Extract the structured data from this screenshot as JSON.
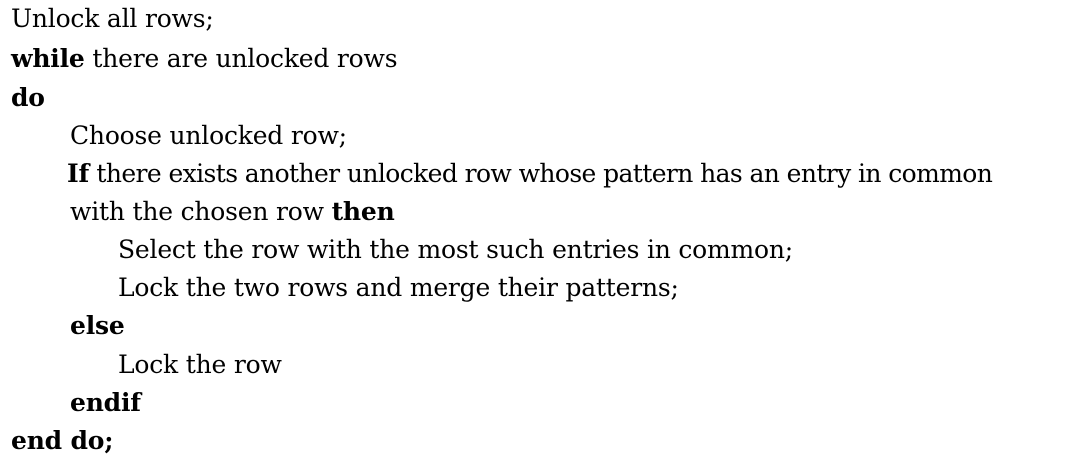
{
  "algorithm": {
    "lines": [
      {
        "text": "Unlock all rows;"
      },
      {
        "keyword": "while",
        "text": " there are unlocked rows"
      },
      {
        "keyword": "do"
      },
      {
        "text": "Choose unlocked row;"
      },
      {
        "keyword": "If",
        "text": " there exists another unlocked row whose pattern has an entry in common"
      },
      {
        "text": "with the chosen row ",
        "keyword_after": "then"
      },
      {
        "text": "Select the row with the most such entries in common;"
      },
      {
        "text": "Lock the two rows and merge their patterns;"
      },
      {
        "keyword": "else"
      },
      {
        "text": "Lock the row"
      },
      {
        "keyword": "endif"
      },
      {
        "keyword": "end do;"
      }
    ]
  }
}
